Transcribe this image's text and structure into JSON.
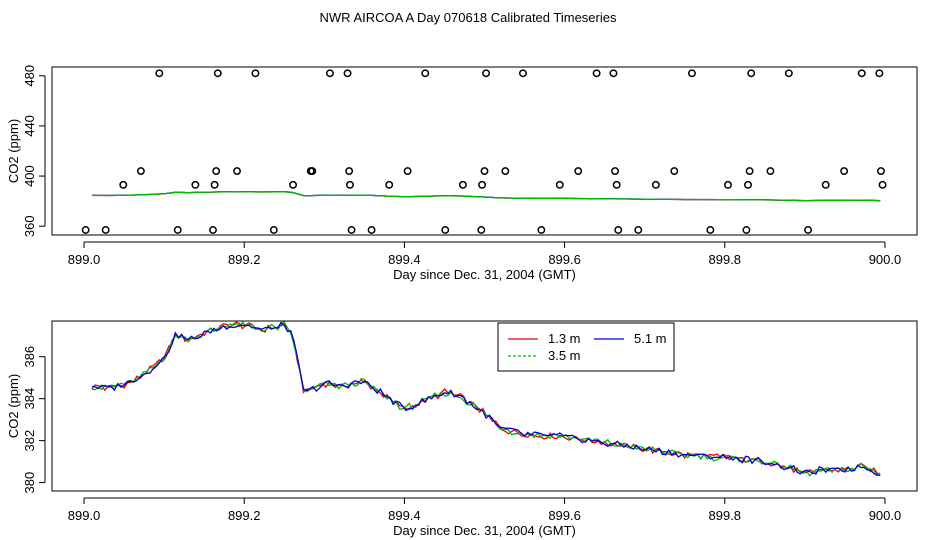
{
  "title": "NWR AIRCOA A  Day 070618  Calibrated Timeseries",
  "colors": {
    "red": "#ee0000",
    "green": "#00bb00",
    "blue": "#0000dd",
    "axis": "#000000"
  },
  "chart_data": [
    {
      "type": "scatter",
      "xlabel": "Day since Dec. 31, 2004 (GMT)",
      "ylabel": "CO2 (ppm)",
      "xlim": [
        898.96,
        900.04
      ],
      "ylim": [
        353,
        487
      ],
      "xticks": [
        899.0,
        899.2,
        899.4,
        899.6,
        899.8,
        900.0
      ],
      "xtick_labels": [
        "899.0",
        "899.2",
        "899.4",
        "899.6",
        "899.8",
        "900.0"
      ],
      "yticks": [
        360,
        400,
        440,
        480
      ],
      "ytick_labels": [
        "360",
        "400",
        "440",
        "480"
      ],
      "points_x": [
        899.002,
        899.027,
        899.049,
        899.071,
        899.094,
        899.117,
        899.139,
        899.161,
        899.163,
        899.165,
        899.167,
        899.191,
        899.214,
        899.237,
        899.261,
        899.283,
        899.285,
        899.307,
        899.329,
        899.331,
        899.332,
        899.334,
        899.359,
        899.381,
        899.404,
        899.426,
        899.451,
        899.473,
        899.496,
        899.497,
        899.5,
        899.502,
        899.526,
        899.548,
        899.571,
        899.594,
        899.617,
        899.64,
        899.661,
        899.663,
        899.665,
        899.667,
        899.692,
        899.714,
        899.737,
        899.759,
        899.782,
        899.804,
        899.827,
        899.829,
        899.831,
        899.833,
        899.857,
        899.88,
        899.904,
        899.926,
        899.949,
        899.971,
        899.993,
        899.995,
        899.997
      ],
      "points_y": [
        357,
        357,
        393,
        404,
        482,
        357,
        393,
        357,
        393,
        404,
        482,
        404,
        482,
        357,
        393,
        404,
        404,
        482,
        482,
        404,
        393,
        357,
        357,
        393,
        404,
        482,
        357,
        393,
        357,
        393,
        404,
        482,
        404,
        482,
        357,
        393,
        404,
        482,
        482,
        404,
        393,
        357,
        357,
        393,
        404,
        482,
        357,
        393,
        357,
        393,
        404,
        482,
        404,
        482,
        357,
        393,
        404,
        482,
        482,
        404,
        393
      ],
      "series": [
        {
          "name": "1.3 m",
          "color": "#ee0000"
        },
        {
          "name": "3.5 m",
          "color": "#00bb00"
        },
        {
          "name": "5.1 m",
          "color": "#0000dd"
        }
      ]
    },
    {
      "type": "line",
      "xlabel": "Day since Dec. 31, 2004 (GMT)",
      "ylabel": "CO2 (ppm)",
      "xlim": [
        898.96,
        900.04
      ],
      "ylim": [
        379.6,
        387.7
      ],
      "xticks": [
        899.0,
        899.2,
        899.4,
        899.6,
        899.8,
        900.0
      ],
      "xtick_labels": [
        "899.0",
        "899.2",
        "899.4",
        "899.6",
        "899.8",
        "900.0"
      ],
      "yticks": [
        380,
        382,
        384,
        386
      ],
      "ytick_labels": [
        "380",
        "382",
        "384",
        "386"
      ],
      "x_start": 899.01,
      "x_end": 899.995,
      "anchor_x": [
        899.01,
        899.03,
        899.06,
        899.08,
        899.1,
        899.115,
        899.13,
        899.15,
        899.18,
        899.2,
        899.22,
        899.24,
        899.25,
        899.26,
        899.275,
        899.3,
        899.32,
        899.35,
        899.37,
        899.38,
        899.4,
        899.42,
        899.45,
        899.47,
        899.5,
        899.52,
        899.55,
        899.6,
        899.65,
        899.7,
        899.75,
        899.8,
        899.85,
        899.88,
        899.9,
        899.92,
        899.95,
        899.97,
        899.995
      ],
      "anchor_y": [
        384.6,
        384.5,
        384.8,
        385.3,
        385.9,
        387.1,
        386.8,
        387.1,
        387.5,
        387.5,
        387.3,
        387.4,
        387.5,
        387.0,
        384.3,
        384.7,
        384.6,
        384.8,
        384.3,
        384.0,
        383.5,
        383.8,
        384.3,
        384.1,
        383.3,
        382.6,
        382.3,
        382.2,
        381.9,
        381.6,
        381.3,
        381.2,
        381.0,
        380.7,
        380.4,
        380.6,
        380.6,
        380.8,
        380.4
      ],
      "series": [
        {
          "name": "1.3 m",
          "color": "#ee0000"
        },
        {
          "name": "3.5 m",
          "color": "#00bb00"
        },
        {
          "name": "5.1 m",
          "color": "#0000dd"
        }
      ],
      "legend": {
        "position": "top-center",
        "entries": [
          {
            "label": "1.3 m",
            "color": "#ee0000",
            "dash": "solid"
          },
          {
            "label": "5.1 m",
            "color": "#0000dd",
            "dash": "solid"
          },
          {
            "label": "3.5 m",
            "color": "#00bb00",
            "dash": "dashed"
          }
        ]
      }
    }
  ]
}
